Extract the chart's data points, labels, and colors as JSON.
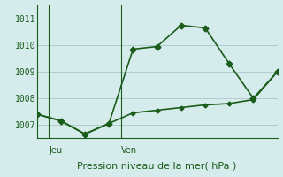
{
  "bg_color": "#d6ecec",
  "grid_color": "#b0cccc",
  "line_color": "#1a5c1a",
  "title": "Pression niveau de la mer( hPa )",
  "xlabel_jeu": "Jeu",
  "xlabel_ven": "Ven",
  "ylim": [
    1006.5,
    1011.5
  ],
  "yticks": [
    1007,
    1008,
    1009,
    1010,
    1011
  ],
  "xlim": [
    0,
    10
  ],
  "series1_x": [
    0,
    1,
    2,
    3,
    4,
    5,
    6,
    7,
    8,
    9,
    10
  ],
  "series1_y": [
    1007.4,
    1007.15,
    1006.65,
    1007.05,
    1009.85,
    1009.95,
    1010.75,
    1010.65,
    1009.3,
    1008.0,
    1009.0
  ],
  "series2_x": [
    0,
    1,
    2,
    3,
    4,
    5,
    6,
    7,
    8,
    9,
    10
  ],
  "series2_y": [
    1007.4,
    1007.15,
    1006.65,
    1007.05,
    1007.45,
    1007.55,
    1007.65,
    1007.75,
    1007.8,
    1007.95,
    1009.0
  ],
  "jeu_x": 0.5,
  "ven_x": 3.5,
  "marker_size": 3.5,
  "marker_size2": 2.5,
  "linewidth": 1.2
}
